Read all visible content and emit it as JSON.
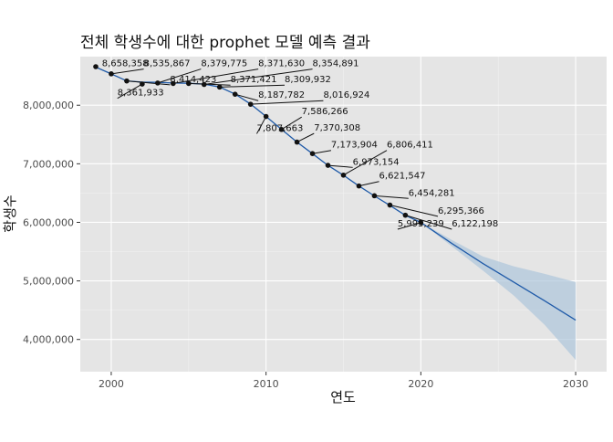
{
  "chart_data": {
    "type": "line",
    "title": "전체 학생수에 대한 prophet 모델 예측 결과",
    "xlabel": "연도",
    "ylabel": "학생수",
    "xlim": [
      1998,
      2032
    ],
    "ylim": [
      3450000,
      8830000
    ],
    "x_ticks": [
      2000,
      2010,
      2020,
      2030
    ],
    "x_tick_labels": [
      "2000",
      "2010",
      "2020",
      "2030"
    ],
    "y_ticks": [
      4000000,
      5000000,
      6000000,
      7000000,
      8000000
    ],
    "y_tick_labels": [
      "4,000,000",
      "5,000,000",
      "6,000,000",
      "7,000,000",
      "8,000,000"
    ],
    "grid": true,
    "actual": {
      "x": [
        1999,
        2000,
        2001,
        2002,
        2003,
        2004,
        2005,
        2006,
        2007,
        2008,
        2009,
        2010,
        2011,
        2012,
        2013,
        2014,
        2015,
        2016,
        2017,
        2018,
        2019,
        2020
      ],
      "y": [
        8658358,
        8535867,
        8414423,
        8361933,
        8379775,
        8371630,
        8371421,
        8354891,
        8309932,
        8187782,
        8016924,
        7807663,
        7586266,
        7370308,
        7173904,
        6973154,
        6806411,
        6621547,
        6454281,
        6295366,
        6122198,
        5995239
      ]
    },
    "forecast": {
      "x": [
        1999,
        2000,
        2001,
        2002,
        2003,
        2004,
        2005,
        2006,
        2007,
        2008,
        2009,
        2010,
        2011,
        2012,
        2013,
        2014,
        2015,
        2016,
        2017,
        2018,
        2019,
        2020,
        2022,
        2024,
        2026,
        2028,
        2030
      ],
      "yhat": [
        8650000,
        8535000,
        8415000,
        8395000,
        8390000,
        8380000,
        8375000,
        8360000,
        8310000,
        8190000,
        8020000,
        7808000,
        7588000,
        7371000,
        7173000,
        6972000,
        6805000,
        6621000,
        6452000,
        6290000,
        6120000,
        5998000,
        5640000,
        5300000,
        4980000,
        4660000,
        4330000
      ],
      "lower": [
        8650000,
        8535000,
        8415000,
        8395000,
        8390000,
        8380000,
        8375000,
        8360000,
        8310000,
        8190000,
        8020000,
        7808000,
        7588000,
        7371000,
        7173000,
        6972000,
        6805000,
        6621000,
        6452000,
        6290000,
        6120000,
        5998000,
        5590000,
        5180000,
        4750000,
        4250000,
        3650000
      ],
      "upper": [
        8650000,
        8535000,
        8415000,
        8395000,
        8390000,
        8380000,
        8375000,
        8360000,
        8310000,
        8190000,
        8020000,
        7808000,
        7588000,
        7371000,
        7173000,
        6972000,
        6805000,
        6621000,
        6452000,
        6290000,
        6120000,
        5998000,
        5700000,
        5420000,
        5250000,
        5120000,
        4980000
      ]
    },
    "labels": [
      {
        "text": "8,658,358",
        "x": 1999,
        "y": 8658358,
        "lx": 1999.4,
        "ly": 8665000
      },
      {
        "text": "8,535,867",
        "x": 2000,
        "y": 8535867,
        "lx": 2002.1,
        "ly": 8665000
      },
      {
        "text": "8,361,933",
        "x": 2002,
        "y": 8361933,
        "lx": 2000.4,
        "ly": 8165000
      },
      {
        "text": "8,379,775",
        "x": 2003,
        "y": 8379775,
        "lx": 2005.8,
        "ly": 8665000
      },
      {
        "text": "8,414,423",
        "x": 2001,
        "y": 8414423,
        "lx": 2003.8,
        "ly": 8395000
      },
      {
        "text": "8,371,630",
        "x": 2004,
        "y": 8371630,
        "lx": 2009.5,
        "ly": 8665000
      },
      {
        "text": "8,371,421",
        "x": 2005,
        "y": 8371421,
        "lx": 2007.7,
        "ly": 8390000
      },
      {
        "text": "8,354,891",
        "x": 2006,
        "y": 8354891,
        "lx": 2013.0,
        "ly": 8665000
      },
      {
        "text": "8,309,932",
        "x": 2007,
        "y": 8309932,
        "lx": 2011.2,
        "ly": 8390000
      },
      {
        "text": "8,187,782",
        "x": 2008,
        "y": 8187782,
        "lx": 2009.5,
        "ly": 8125000
      },
      {
        "text": "8,016,924",
        "x": 2009,
        "y": 8016924,
        "lx": 2013.7,
        "ly": 8125000
      },
      {
        "text": "7,807,663",
        "x": 2010,
        "y": 7807663,
        "lx": 2009.4,
        "ly": 7560000
      },
      {
        "text": "7,586,266",
        "x": 2011,
        "y": 7586266,
        "lx": 2012.3,
        "ly": 7845000
      },
      {
        "text": "7,370,308",
        "x": 2012,
        "y": 7370308,
        "lx": 2013.1,
        "ly": 7565000
      },
      {
        "text": "7,173,904",
        "x": 2013,
        "y": 7173904,
        "lx": 2014.2,
        "ly": 7275000
      },
      {
        "text": "6,973,154",
        "x": 2014,
        "y": 6973154,
        "lx": 2015.6,
        "ly": 6985000
      },
      {
        "text": "6,806,411",
        "x": 2015,
        "y": 6806411,
        "lx": 2017.8,
        "ly": 7275000
      },
      {
        "text": "6,621,547",
        "x": 2016,
        "y": 6621547,
        "lx": 2017.3,
        "ly": 6745000
      },
      {
        "text": "6,454,281",
        "x": 2017,
        "y": 6454281,
        "lx": 2019.2,
        "ly": 6455000
      },
      {
        "text": "6,295,366",
        "x": 2018,
        "y": 6295366,
        "lx": 2021.1,
        "ly": 6150000
      },
      {
        "text": "6,122,198",
        "x": 2019,
        "y": 6122198,
        "lx": 2022.0,
        "ly": 5930000
      },
      {
        "text": "5,995,239",
        "x": 2020,
        "y": 5995239,
        "lx": 2018.5,
        "ly": 5930000
      }
    ],
    "colors": {
      "panel": "#e5e5e5",
      "grid_major": "#ffffff",
      "grid_minor": "#f1f1f1",
      "line": "#1f5aa8",
      "band": "#aec6dc",
      "points": "#111111",
      "text": "#111111",
      "axis_text": "#4d4d4d"
    }
  }
}
